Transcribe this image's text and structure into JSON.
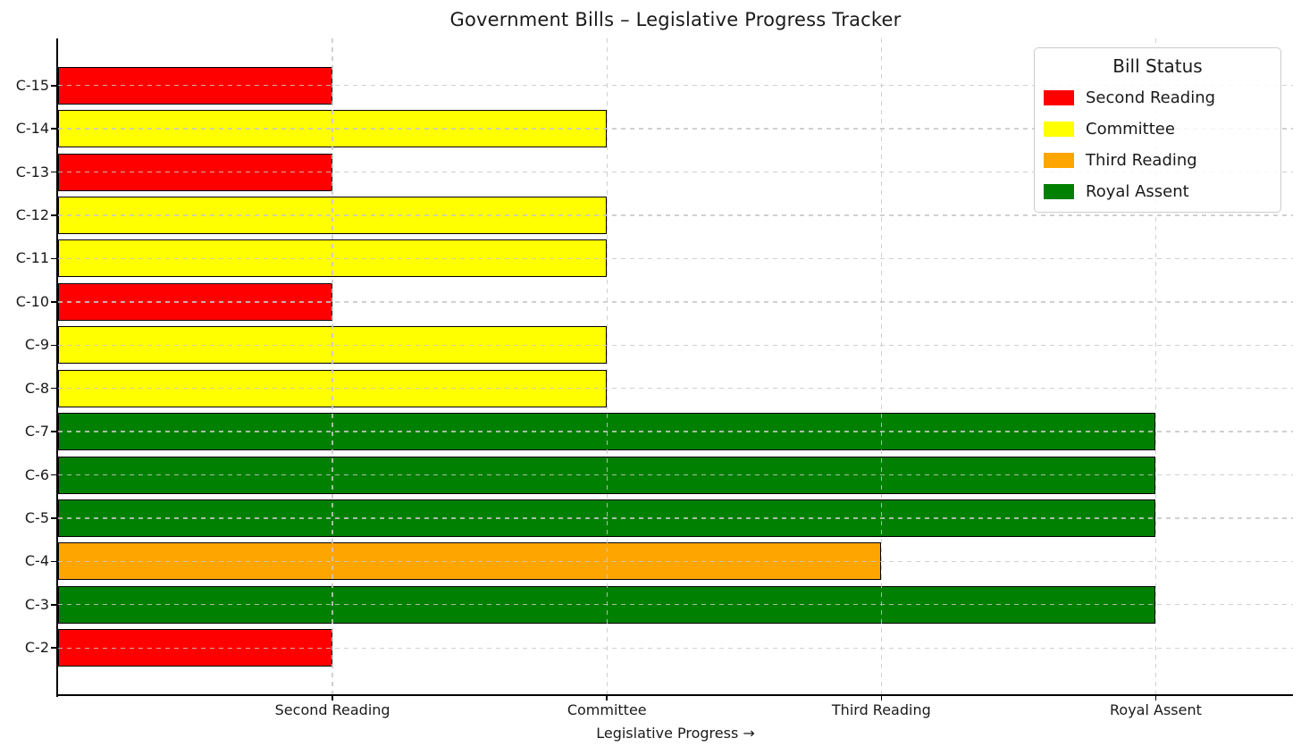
{
  "title": "Government Bills – Legislative Progress Tracker",
  "chart_data": {
    "type": "bar",
    "orientation": "horizontal",
    "title": "Government Bills – Legislative Progress Tracker",
    "xlabel": "Legislative Progress →",
    "ylabel": "",
    "xlim": [
      0,
      4.5
    ],
    "grid": "dashed, light gray, drawn above bars, both axes",
    "bar_edge_color": "#000000",
    "categories_top_to_bottom": [
      "C-15",
      "C-14",
      "C-13",
      "C-12",
      "C-11",
      "C-10",
      "C-9",
      "C-8",
      "C-7",
      "C-6",
      "C-5",
      "C-4",
      "C-3",
      "C-2"
    ],
    "values": [
      1,
      2,
      1,
      2,
      2,
      1,
      2,
      2,
      4,
      4,
      4,
      3,
      4,
      1
    ],
    "statuses": [
      "Second Reading",
      "Committee",
      "Second Reading",
      "Committee",
      "Committee",
      "Second Reading",
      "Committee",
      "Committee",
      "Royal Assent",
      "Royal Assent",
      "Royal Assent",
      "Third Reading",
      "Royal Assent",
      "Second Reading"
    ],
    "x_tick_values": [
      1,
      2,
      3,
      4
    ],
    "x_tick_labels": [
      "Second Reading",
      "Committee",
      "Third Reading",
      "Royal Assent"
    ],
    "status_colors": {
      "Second Reading": "#ff0000",
      "Committee": "#ffff00",
      "Third Reading": "#ffa500",
      "Royal Assent": "#008000"
    },
    "legend": {
      "title": "Bill Status",
      "position": "upper right",
      "entries": [
        {
          "label": "Second Reading",
          "color": "#ff0000"
        },
        {
          "label": "Committee",
          "color": "#ffff00"
        },
        {
          "label": "Third Reading",
          "color": "#ffa500"
        },
        {
          "label": "Royal Assent",
          "color": "#008000"
        }
      ]
    }
  }
}
